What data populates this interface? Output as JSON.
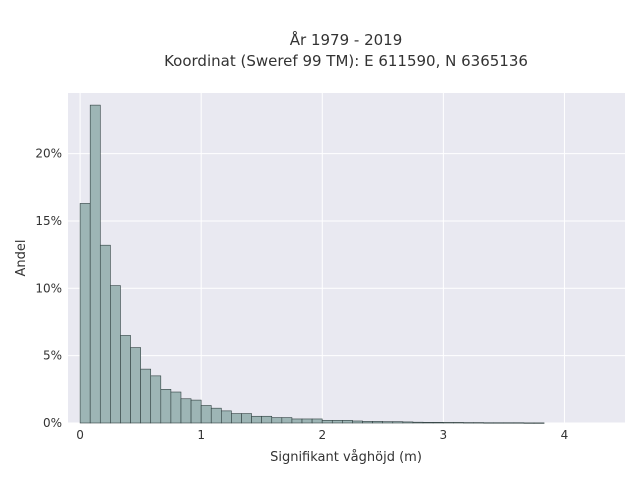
{
  "chart_data": {
    "type": "bar",
    "title_line1": "År 1979 - 2019",
    "title_line2": "Koordinat (Sweref 99 TM): E 611590, N 6365136",
    "xlabel": "Signifikant våghöjd (m)",
    "ylabel": "Andel",
    "xlim": [
      -0.1,
      4.5
    ],
    "ylim": [
      0,
      24.5
    ],
    "x_ticks": [
      0,
      1,
      2,
      3,
      4
    ],
    "x_tick_labels": [
      "0",
      "1",
      "2",
      "3",
      "4"
    ],
    "y_ticks": [
      0,
      5,
      10,
      15,
      20
    ],
    "y_tick_labels": [
      "0%",
      "5%",
      "10%",
      "15%",
      "20%"
    ],
    "bin_width": 0.0833,
    "bin_start": 0,
    "values": [
      16.3,
      23.6,
      13.2,
      10.2,
      6.5,
      5.6,
      4.0,
      3.5,
      2.5,
      2.3,
      1.8,
      1.7,
      1.3,
      1.1,
      0.9,
      0.7,
      0.7,
      0.5,
      0.5,
      0.4,
      0.4,
      0.3,
      0.3,
      0.3,
      0.2,
      0.2,
      0.2,
      0.15,
      0.12,
      0.12,
      0.1,
      0.1,
      0.08,
      0.06,
      0.05,
      0.05,
      0.04,
      0.04,
      0.03,
      0.03,
      0.02,
      0.02,
      0.02,
      0.02,
      0.01,
      0.01
    ],
    "grid": true,
    "colors": {
      "bar_fill": "#9db5b5",
      "bar_edge": "#2f3f3f",
      "plot_bg": "#e9e9f1",
      "grid": "#ffffff"
    }
  }
}
